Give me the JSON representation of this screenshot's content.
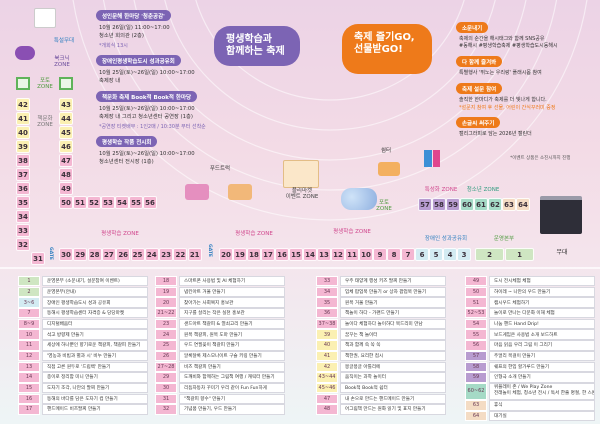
{
  "colors": {
    "green": "#cfe6c2",
    "blue": "#d3ebf2",
    "pink": "#f4b7d2",
    "yellow": "#fbf0b2",
    "purple": "#b89cd0",
    "teal": "#a5dac6",
    "peach": "#f4dcc4",
    "event_purple": "#7c64b4",
    "event_orange": "#ee7a1a"
  },
  "headline": {
    "left_bubble": "평생학습과\n함께하는 축제",
    "right_bubble": "축제 즐기GO,\n선물받GO!"
  },
  "events": [
    {
      "title": "성인문해 한마당 '청춘공감'",
      "lines": [
        "10월 26일(일) 11:00~17:00",
        "청소년 회의관 (2층)"
      ],
      "note": "*개회식 13시"
    },
    {
      "title": "장애인평생학습도시 성과공유회",
      "lines": [
        "10월 25일(토)~26일(일) 10:00~17:00",
        "축제장 내"
      ],
      "note": ""
    },
    {
      "title": "책문화 축제 Book적 Book적 한마당",
      "lines": [
        "10월 25일(토)~26일(일) 10:00~17:00",
        "축제장 내 그리고 청소년센터 공연장 (1층)"
      ],
      "note": "*공연장 티켓배부 : 1인2매 / 10:30분 부터 선착순"
    },
    {
      "title": "평생학습 작품 전시회",
      "lines": [
        "10월 25일(토)~26일(일) 10:00~17:00",
        "청소년센터 전시장 (1층)"
      ],
      "note": ""
    }
  ],
  "promos": [
    {
      "title": "소문내기",
      "lines": [
        "축제의 순간을 해시태그와 함께 SNS공유",
        "#동해시 #평생학습축제 #평생학습도시동해시"
      ],
      "note": ""
    },
    {
      "title": "다 함께 즐겨봐",
      "lines": [
        "특별행사 '뛰노는 우리랑' 플래시몹 참여"
      ],
      "note": ""
    },
    {
      "title": "축제 설문 참여",
      "lines": [
        "솔직한 한마디가 축제를 더 빛나게 합니다."
      ],
      "note": "*설문지 참여 후 선물, 어린이 간식꾸러미 증정"
    },
    {
      "title": "손글씨 써주기",
      "lines": [
        "캘리그라피로 담는 2026년 캘린더"
      ],
      "note": ""
    }
  ],
  "promo_footnote": "*이벤트 상품은 소진시까지 진행",
  "map": {
    "labels": {
      "special_stage": "특설무대",
      "booknic": "북크닉\nZONE",
      "photo_left": "포토\nZONE",
      "book_culture": "책문화\nZONE",
      "food_truck": "푸드트럭",
      "rest": "쉼터",
      "flea": "플리마켓\n이벤트 ZONE",
      "photo_right": "포토\nZONE",
      "specialized": "특성화 ZONE",
      "youth": "청소년 ZONE",
      "lifelong_1": "평생학습 ZONE",
      "lifelong_2": "평생학습 ZONE",
      "lifelong_3": "평생학습 ZONE",
      "disability": "장애인 성과공유회",
      "hq": "운영본부",
      "stage": "무대",
      "gate_1": "GATE",
      "gate_2": "GATE"
    },
    "booth_groups": {
      "left_column": [
        [
          "42",
          "yellow"
        ],
        [
          "41",
          "yellow"
        ],
        [
          "40",
          "yellow"
        ],
        [
          "39",
          "yellow"
        ],
        [
          "38",
          "pink"
        ],
        [
          "37",
          "pink"
        ],
        [
          "36",
          "pink"
        ],
        [
          "35",
          "pink"
        ],
        [
          "34",
          "pink"
        ],
        [
          "33",
          "pink"
        ],
        [
          "32",
          "pink"
        ]
      ],
      "right_column": [
        [
          "43",
          "yellow"
        ],
        [
          "44",
          "yellow"
        ],
        [
          "45",
          "yellow"
        ],
        [
          "46",
          "yellow"
        ],
        [
          "47",
          "pink"
        ],
        [
          "48",
          "pink"
        ],
        [
          "49",
          "pink"
        ],
        [
          "50",
          "pink"
        ]
      ],
      "middle_row": [
        [
          "51",
          "pink"
        ],
        [
          "52",
          "pink"
        ],
        [
          "53",
          "pink"
        ],
        [
          "54",
          "pink"
        ],
        [
          "55",
          "pink"
        ],
        [
          "56",
          "pink"
        ]
      ],
      "corner": [
        [
          "31",
          "pink"
        ]
      ],
      "bottom_left": [
        [
          "30",
          "pink"
        ],
        [
          "29",
          "pink"
        ],
        [
          "28",
          "pink"
        ],
        [
          "27",
          "pink"
        ],
        [
          "26",
          "pink"
        ],
        [
          "25",
          "pink"
        ],
        [
          "24",
          "pink"
        ],
        [
          "23",
          "pink"
        ],
        [
          "22",
          "pink"
        ],
        [
          "21",
          "pink"
        ]
      ],
      "bottom_right": [
        [
          "20",
          "pink"
        ],
        [
          "19",
          "pink"
        ],
        [
          "18",
          "pink"
        ],
        [
          "17",
          "pink"
        ],
        [
          "16",
          "pink"
        ],
        [
          "15",
          "pink"
        ],
        [
          "14",
          "pink"
        ],
        [
          "13",
          "pink"
        ],
        [
          "12",
          "pink"
        ],
        [
          "11",
          "pink"
        ],
        [
          "10",
          "pink"
        ],
        [
          "9",
          "pink"
        ],
        [
          "8",
          "pink"
        ],
        [
          "7",
          "pink"
        ],
        [
          "6",
          "blue"
        ],
        [
          "5",
          "blue"
        ],
        [
          "4",
          "blue"
        ],
        [
          "3",
          "blue"
        ],
        [
          "2",
          "green"
        ],
        [
          "1",
          "green"
        ]
      ],
      "right_row": [
        [
          "57",
          "purple"
        ],
        [
          "58",
          "purple"
        ],
        [
          "59",
          "purple"
        ],
        [
          "60",
          "teal"
        ],
        [
          "61",
          "teal"
        ],
        [
          "62",
          "teal"
        ],
        [
          "63",
          "peach"
        ],
        [
          "64",
          "peach"
        ]
      ]
    }
  },
  "program_table": [
    [
      [
        "1",
        "운영본부 (소문내기, 설문참여 이벤트)",
        "green"
      ],
      [
        "2",
        "운영본부(안내)",
        "green"
      ],
      [
        "3~6",
        "장애인 평생학습도시 성과 공유회",
        "blue"
      ],
      [
        "7",
        "동해시 평생학습센터 자격증 & 당당마켓",
        "pink"
      ],
      [
        "8~9",
        "디지털배움터",
        "pink"
      ],
      [
        "10",
        "석고 방향제 만들기",
        "pink"
      ],
      [
        "11",
        "세상에 하나뿐인 향기로운 책갈피, 책갈피 만들기",
        "pink"
      ],
      [
        "12",
        "'영농과 비빔과 별과 시' 비누 만들기",
        "pink"
      ],
      [
        "13",
        "직접 고른 원두로 '드립백' 만들기",
        "pink"
      ],
      [
        "14",
        "종이로 정리함 미니 만들기",
        "pink"
      ],
      [
        "15",
        "도자기 조각, 나만의 팔찌 만들기",
        "pink"
      ],
      [
        "16",
        "동해의 바다를 담은 도자기 컵 만들기",
        "pink"
      ],
      [
        "17",
        "핸드메이드 비즈팔찌 만들기",
        "pink"
      ]
    ],
    [
      [
        "18",
        "스마트폰 사용법 및 AI 체험하기",
        "pink"
      ],
      [
        "19",
        "냅킨아트 거울 만들기",
        "pink"
      ],
      [
        "20",
        "찾아가는 사회복지 홍보관",
        "pink"
      ],
      [
        "21~22",
        "지구를 살리는 작은 실천 홍보관",
        "pink"
      ],
      [
        "23",
        "샌드아트 책갈피 & 열쇠고리 만들기",
        "pink"
      ],
      [
        "24",
        "원목 책갈피, 원목 도마 만들기",
        "pink"
      ],
      [
        "25",
        "우드 연필꽂이 책갈피 만들기",
        "pink"
      ],
      [
        "26",
        "알록달록 제스모나이트 구슬 키링 만들기",
        "pink"
      ],
      [
        "27~28",
        "비즈 책갈피 만들기",
        "pink"
      ],
      [
        "29",
        "도깨비와 함께하는 그림책 여행 / 캐릭터 만들기",
        "pink"
      ],
      [
        "30",
        "리듬자동차 꾸미기 우리 같이 Fun Fun하게",
        "pink"
      ],
      [
        "31",
        "\"책갈피 향수\" 만들기",
        "pink"
      ],
      [
        "32",
        "기념품 만들기, 우드 만들기",
        "pink"
      ]
    ],
    [
      [
        "33",
        "우주 태양계 행성 키즈 팔찌 만들기",
        "pink"
      ],
      [
        "34",
        "입체 팝업북 만들기 or 상자 팝업북 만들기",
        "pink"
      ],
      [
        "35",
        "원목 거울 만들기",
        "pink"
      ],
      [
        "36",
        "책놀이 하다 - 가랜드 만들기",
        "pink"
      ],
      [
        "37~38",
        "놀이다 체험하다 놀이하다 북드리미 만남",
        "pink"
      ],
      [
        "39",
        "꿈꾸는 책 놀이터",
        "yellow"
      ],
      [
        "40",
        "책과 함께 쏙 쏙 쏙",
        "yellow"
      ],
      [
        "41",
        "책한권, 요리한 접시",
        "yellow"
      ],
      [
        "42",
        "몽글몽글 아틀리에",
        "yellow"
      ],
      [
        "43~44",
        "움직이는 과학 놀이터",
        "yellow"
      ],
      [
        "45~46",
        "Book적 Book적 쉼터",
        "yellow"
      ],
      [
        "47",
        "내 손으로 만드는 핸드메이드 만들기",
        "pink"
      ],
      [
        "48",
        "어그림책 만드는 원화 읽기 및 표지 만들기",
        "pink"
      ]
    ],
    [
      [
        "49",
        "도시 전시체험 체험",
        "pink"
      ],
      [
        "50",
        "하이레 ~ 나만의 우드 만들기",
        "pink"
      ],
      [
        "51",
        "캠시우드 체험하기",
        "pink"
      ],
      [
        "52~53",
        "놀이로 만나는 다문화 이해 체험",
        "pink"
      ],
      [
        "54",
        "나눔 핸드 Hand Drip!",
        "pink"
      ],
      [
        "55",
        "보드게임은 사용법 소개 보드하트",
        "pink"
      ],
      [
        "56",
        "마음 읽음 우리 그림 이 그리기",
        "pink"
      ],
      [
        "57",
        "주얼리 목걸이 만들기",
        "purple"
      ],
      [
        "58",
        "쉐프의 한입 할가루드 만들기",
        "purple"
      ],
      [
        "59",
        "인형극 소개 만들기",
        "purple"
      ],
      [
        "60~62",
        "위플레이 존 / We Play Zone\n전래놀이 체험, 청소년 전시 / 독서 한줄 명절, 한 스톤",
        "teal"
      ],
      [
        "63",
        "휴식",
        "peach"
      ],
      [
        "64",
        "대기실",
        "peach"
      ]
    ]
  ]
}
